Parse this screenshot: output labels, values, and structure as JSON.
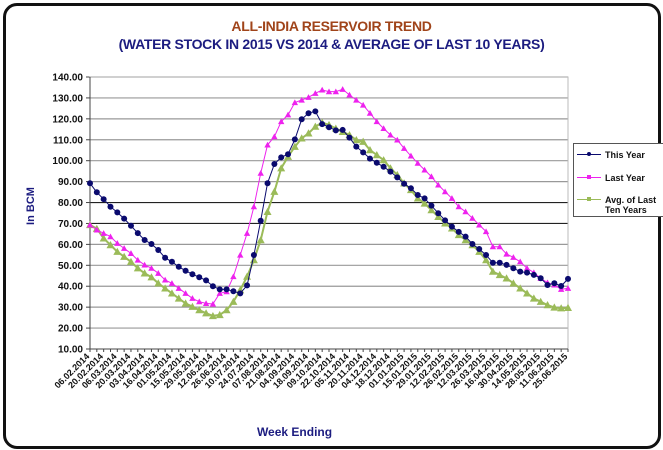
{
  "chart_data": {
    "type": "line",
    "title": "ALL-INDIA RESERVOIR TREND",
    "subtitle": "(WATER STOCK IN 2015 VS 2014 & AVERAGE OF LAST 10 YEARS)",
    "xlabel": "Week Ending",
    "ylabel": "In BCM",
    "ylim": [
      10,
      140
    ],
    "yticks": [
      "140.00",
      "130.00",
      "120.00",
      "110.00",
      "100.00",
      "90.00",
      "80.00",
      "70.00",
      "60.00",
      "50.00",
      "40.00",
      "30.00",
      "20.00",
      "10.00"
    ],
    "grid": true,
    "legend_placement": "right",
    "x_tick_labels": [
      "06.02.2014",
      "20.02.2014",
      "06.03.2014",
      "20.03.2014",
      "03.04.2014",
      "16.04.2014",
      "01.05.2014",
      "15.05.2014",
      "29.05.2014",
      "12.06.2014",
      "26.06.2014",
      "10.07.2014",
      "24.07.2014",
      "07.08.2014",
      "21.08.2014",
      "04.09.2014",
      "18.09.2014",
      "09.10.2014",
      "22.10.2014",
      "05.11.2014",
      "20.11.2014",
      "04.12.2014",
      "18.12.2014",
      "01.01.2015",
      "15.01.2015",
      "29.01.2015",
      "12.02.2015",
      "26.02.2015",
      "12.03.2015",
      "26.03.2015",
      "16.04.2015",
      "30.04.2015",
      "14.05.2015",
      "28.05.2015",
      "11.06.2015",
      "25.06.2015"
    ],
    "series": [
      {
        "name": "This Year",
        "color": "#0a0a6e",
        "marker": "circle",
        "values": [
          89.2,
          84.9,
          81.6,
          78.0,
          75.3,
          72.3,
          68.9,
          65.4,
          62.1,
          60.2,
          57.3,
          53.6,
          51.7,
          49.3,
          47.4,
          45.7,
          44.3,
          42.8,
          40.0,
          38.5,
          38.5,
          37.6,
          36.6,
          40.4,
          54.9,
          71.3,
          89.2,
          98.4,
          101.6,
          103.1,
          110.2,
          119.8,
          122.7,
          123.6,
          117.5,
          116.0,
          114.5,
          114.7,
          111.0,
          106.7,
          104.0,
          101.0,
          99.0,
          97.1,
          94.8,
          92.0,
          89.0,
          86.8,
          83.6,
          82.0,
          78.5,
          74.9,
          71.5,
          68.5,
          66.0,
          63.7,
          60.2,
          57.8,
          54.9,
          51.2,
          51.2,
          50.2,
          48.6,
          47.0,
          46.5,
          45.4,
          43.8,
          40.6,
          41.4,
          40.1,
          43.5
        ]
      },
      {
        "name": "Last Year",
        "color": "#ee22ee",
        "marker": "triangle",
        "values": [
          69.3,
          66.9,
          65.3,
          63.7,
          60.5,
          58.1,
          55.7,
          52.5,
          50.2,
          48.6,
          46.2,
          43.0,
          41.4,
          39.0,
          36.6,
          34.2,
          32.6,
          31.8,
          31.5,
          36.6,
          37.4,
          44.6,
          54.9,
          65.3,
          78.0,
          94.0,
          107.5,
          111.5,
          118.7,
          121.9,
          127.8,
          129.0,
          130.3,
          132.2,
          133.8,
          133.0,
          133.0,
          134.1,
          131.4,
          129.0,
          126.6,
          122.7,
          118.7,
          115.4,
          112.3,
          109.9,
          105.9,
          102.3,
          98.8,
          95.6,
          92.4,
          88.4,
          85.2,
          82.0,
          78.0,
          75.6,
          72.5,
          69.3,
          66.1,
          58.9,
          58.9,
          55.4,
          53.8,
          51.7,
          48.6,
          46.5,
          43.8,
          41.7,
          40.6,
          38.5,
          39.0
        ]
      },
      {
        "name": "Avg. of Last Ten Years",
        "color": "#9bbb59",
        "marker": "triangle",
        "values": [
          69.3,
          67.5,
          62.9,
          59.7,
          56.5,
          54.1,
          51.7,
          48.6,
          46.2,
          44.3,
          41.4,
          39.0,
          36.6,
          34.2,
          31.8,
          30.2,
          28.6,
          27.1,
          25.8,
          26.3,
          28.6,
          32.6,
          38.2,
          44.6,
          52.5,
          62.1,
          75.6,
          85.2,
          96.4,
          101.9,
          106.7,
          110.7,
          113.1,
          116.3,
          118.2,
          117.1,
          115.4,
          113.8,
          112.3,
          109.9,
          109.1,
          105.1,
          102.7,
          100.3,
          96.4,
          93.2,
          89.2,
          86.0,
          82.0,
          79.6,
          76.4,
          73.2,
          70.1,
          67.7,
          64.5,
          62.1,
          59.7,
          56.5,
          52.5,
          47.0,
          45.4,
          43.8,
          41.4,
          39.0,
          36.6,
          34.2,
          32.6,
          31.0,
          29.9,
          29.5,
          29.7
        ]
      }
    ]
  },
  "legend": {
    "this_year": "This Year",
    "last_year": "Last Year",
    "avg_line1": "Avg. of Last",
    "avg_line2": "Ten Years"
  }
}
